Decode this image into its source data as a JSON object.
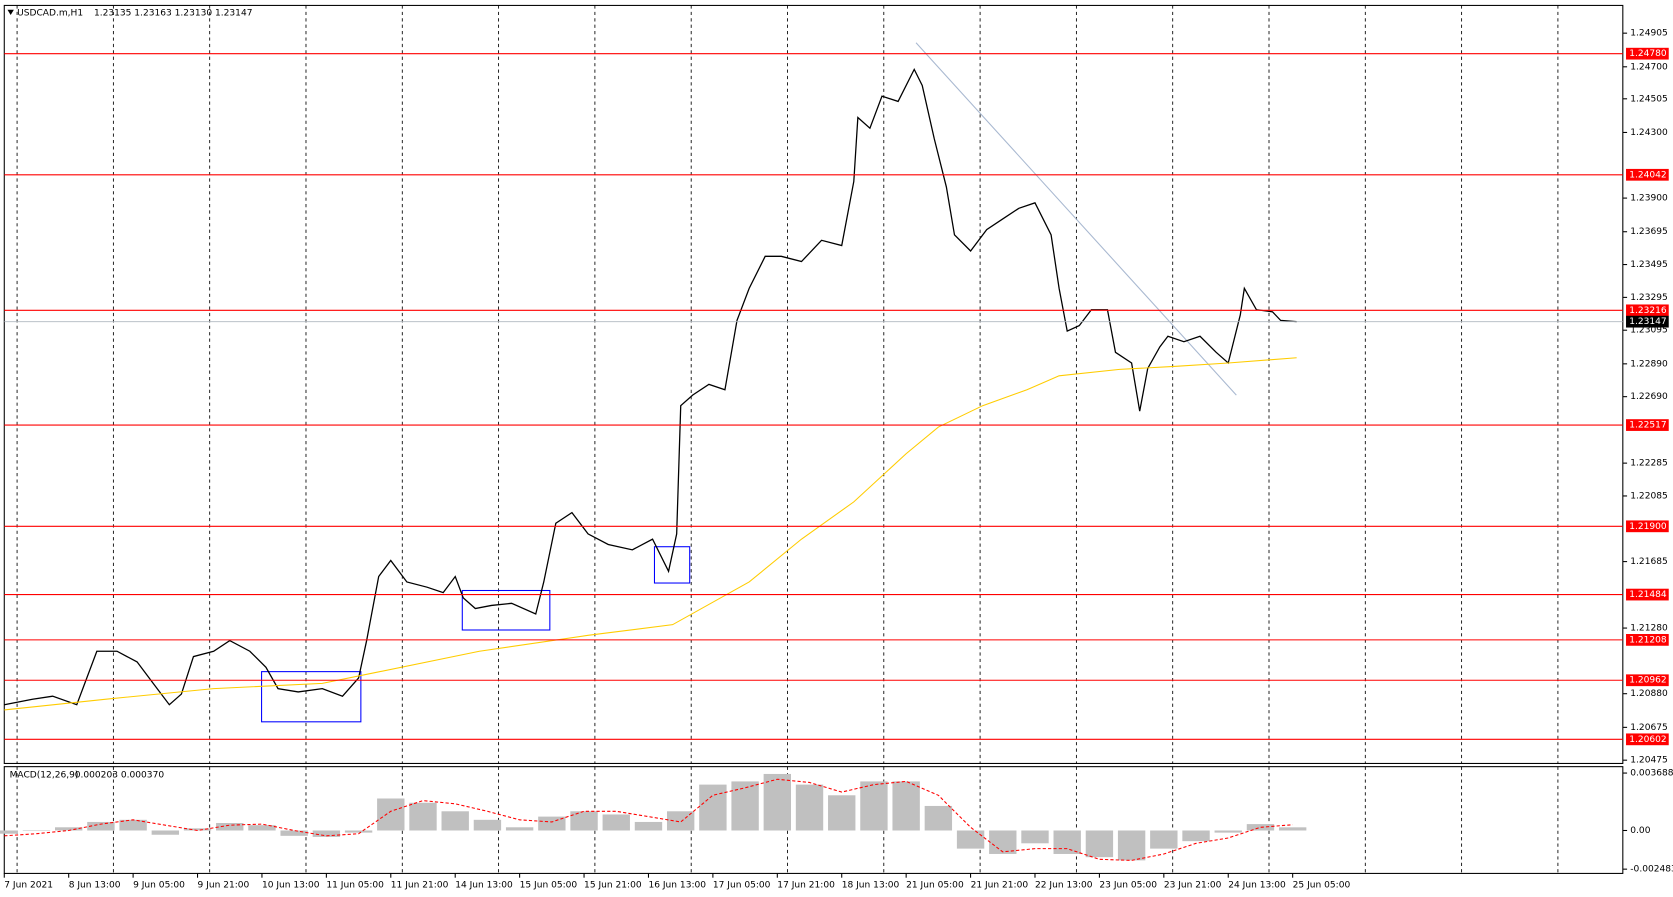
{
  "chart_data": [
    {
      "type": "line",
      "title": "USDCAD.m,H1",
      "subtitle": "1.23135 1.23163 1.23130 1.23147",
      "xlim": [
        0,
        402
      ],
      "ylim": [
        1.20455,
        1.25074
      ],
      "xticks": [
        {
          "value": 0,
          "label": "7 Jun 2021"
        },
        {
          "value": 16,
          "label": "8 Jun 13:00"
        },
        {
          "value": 32,
          "label": "9 Jun 05:00"
        },
        {
          "value": 48,
          "label": "9 Jun 21:00"
        },
        {
          "value": 64,
          "label": "10 Jun 13:00"
        },
        {
          "value": 80,
          "label": "11 Jun 05:00"
        },
        {
          "value": 96,
          "label": "11 Jun 21:00"
        },
        {
          "value": 112,
          "label": "14 Jun 13:00"
        },
        {
          "value": 128,
          "label": "15 Jun 05:00"
        },
        {
          "value": 144,
          "label": "15 Jun 21:00"
        },
        {
          "value": 160,
          "label": "16 Jun 13:00"
        },
        {
          "value": 176,
          "label": "17 Jun 05:00"
        },
        {
          "value": 192,
          "label": "17 Jun 21:00"
        },
        {
          "value": 208,
          "label": "18 Jun 13:00"
        },
        {
          "value": 224,
          "label": "21 Jun 05:00"
        },
        {
          "value": 240,
          "label": "21 Jun 21:00"
        },
        {
          "value": 256,
          "label": "22 Jun 13:00"
        },
        {
          "value": 272,
          "label": "23 Jun 05:00"
        },
        {
          "value": 288,
          "label": "23 Jun 21:00"
        },
        {
          "value": 304,
          "label": "24 Jun 13:00"
        },
        {
          "value": 320,
          "label": "25 Jun 05:00"
        }
      ],
      "yticks": [
        1.24905,
        {
          "value": 1.247,
          "label": "1.24700"
        },
        1.24505,
        {
          "value": 1.243,
          "label": "1.24300"
        },
        {
          "value": 1.239,
          "label": "1.23900"
        },
        1.23695,
        1.23495,
        1.23295,
        1.23095,
        {
          "value": 1.2289,
          "label": "1.22890"
        },
        {
          "value": 1.2269,
          "label": "1.22690"
        },
        1.22285,
        1.22085,
        1.21685,
        {
          "value": 1.2128,
          "label": "1.21280"
        },
        {
          "value": 1.2088,
          "label": "1.20880"
        },
        1.20675,
        1.20475
      ],
      "levels": {
        "color": "#ff0000",
        "values": [
          {
            "value": 1.2478,
            "label": "1.24780"
          },
          1.24042,
          1.23216,
          1.22517,
          {
            "value": 1.219,
            "label": "1.21900"
          },
          1.21484,
          1.21208,
          1.20962,
          1.20602
        ]
      },
      "current": 1.23147,
      "series": [
        {
          "color": "#000000",
          "x": [
            0,
            7,
            12,
            18,
            20,
            23,
            28,
            33,
            37,
            41,
            44,
            47,
            52,
            56,
            61,
            65,
            68,
            73,
            79,
            84,
            88,
            90,
            93,
            96,
            100,
            105,
            109,
            112,
            114,
            117,
            121,
            126,
            132,
            134,
            137,
            141,
            145,
            150,
            156,
            161,
            165,
            167,
            168,
            171,
            175,
            179,
            182,
            185,
            189,
            193,
            198,
            203,
            208,
            211,
            212,
            215,
            218,
            222,
            226,
            228,
            231,
            234,
            236,
            240,
            244,
            248,
            252,
            256,
            260,
            262,
            264,
            267,
            270,
            274,
            276,
            280,
            282,
            284,
            287,
            289,
            293,
            297,
            301,
            304,
            307,
            308,
            311,
            315,
            317,
            321
          ],
          "values": [
            1.20813,
            1.20846,
            1.20865,
            1.20813,
            1.20943,
            1.21139,
            1.21139,
            1.21074,
            1.20943,
            1.20813,
            1.20878,
            1.21106,
            1.21139,
            1.21204,
            1.21139,
            1.21041,
            1.20911,
            1.20891,
            1.20911,
            1.20865,
            1.20976,
            1.21204,
            1.21594,
            1.21692,
            1.21561,
            1.21529,
            1.21496,
            1.21594,
            1.21464,
            1.21399,
            1.21418,
            1.21431,
            1.21366,
            1.21561,
            1.21919,
            1.21984,
            1.21854,
            1.21789,
            1.21757,
            1.21822,
            1.21626,
            1.21854,
            1.22635,
            1.227,
            1.22765,
            1.22732,
            1.23155,
            1.2335,
            1.23545,
            1.23545,
            1.23513,
            1.23643,
            1.23611,
            1.24001,
            1.24391,
            1.24326,
            1.24521,
            1.24489,
            1.24684,
            1.24586,
            1.24261,
            1.23968,
            1.23676,
            1.23578,
            1.23708,
            1.23773,
            1.23838,
            1.23871,
            1.23676,
            1.2335,
            1.2309,
            1.23123,
            1.2322,
            1.2322,
            1.2296,
            1.22895,
            1.22602,
            1.22862,
            1.22993,
            1.23058,
            1.23025,
            1.23058,
            1.2296,
            1.22895,
            1.23188,
            1.2335,
            1.2322,
            1.23207,
            1.23155,
            1.23147
          ]
        },
        {
          "color": "#ffcc00",
          "x": [
            0,
            25,
            52,
            79,
            92,
            118,
            145,
            166,
            185,
            198,
            211,
            224,
            232,
            243,
            254,
            262,
            277,
            291,
            304,
            321
          ],
          "values": [
            1.20781,
            1.20846,
            1.20911,
            1.20943,
            1.21008,
            1.21139,
            1.21236,
            1.21301,
            1.21561,
            1.21822,
            1.22049,
            1.22342,
            1.22505,
            1.22635,
            1.22732,
            1.22817,
            1.22856,
            1.22875,
            1.22895,
            1.22927
          ]
        }
      ]
    },
    {
      "type": "macd",
      "title": "MACD(12,26,9)",
      "subtitle": "0.000203 0.000370",
      "xlim": [
        0,
        402
      ],
      "ylim": [
        -0.002757,
        0.004099
      ],
      "yticks": [
        0.003688,
        {
          "value": 0,
          "label": "0.00"
        },
        -0.002483
      ],
      "x": [
        0,
        8,
        16,
        24,
        32,
        40,
        48,
        56,
        64,
        72,
        80,
        88,
        96,
        104,
        112,
        120,
        128,
        136,
        144,
        152,
        160,
        168,
        176,
        184,
        192,
        200,
        208,
        216,
        224,
        232,
        240,
        248,
        256,
        264,
        272,
        280,
        288,
        296,
        304,
        312,
        320
      ],
      "series": [
        {
          "color": "#c0c0c0",
          "values": [
            -0.000206,
            0,
            0.000206,
            0.000548,
            0.000685,
            -0.000274,
            0.000137,
            0.00048,
            0.000343,
            -0.000343,
            -0.000411,
            -0.000137,
            0.002055,
            0.001781,
            0.001233,
            0.000685,
            0.000206,
            0.000891,
            0.001233,
            0.001028,
            0.000548,
            0.001233,
            0.002946,
            0.003151,
            0.003631,
            0.002946,
            0.002261,
            0.003151,
            0.003151,
            0.001576,
            -0.001165,
            -0.001507,
            -0.000822,
            -0.001507,
            -0.001713,
            -0.001918,
            -0.001165,
            -0.000685,
            -0.000137,
            0.000411,
            0.000203
          ]
        },
        {
          "color": "#ff0000",
          "values": [
            -0.000343,
            -0.000206,
            0,
            0.000411,
            0.000685,
            0.000343,
            0,
            0.000343,
            0.000411,
            0,
            -0.000343,
            -0.000206,
            0.001233,
            0.001918,
            0.001713,
            0.001233,
            0.000685,
            0.000548,
            0.001233,
            0.001233,
            0.000891,
            0.000548,
            0.002261,
            0.00274,
            0.003288,
            0.003083,
            0.002466,
            0.002946,
            0.003151,
            0.002261,
            0.000206,
            -0.00137,
            -0.001165,
            -0.001165,
            -0.00185,
            -0.001918,
            -0.001507,
            -0.000822,
            -0.00048,
            0.000206,
            0.00037
          ]
        }
      ]
    }
  ]
}
